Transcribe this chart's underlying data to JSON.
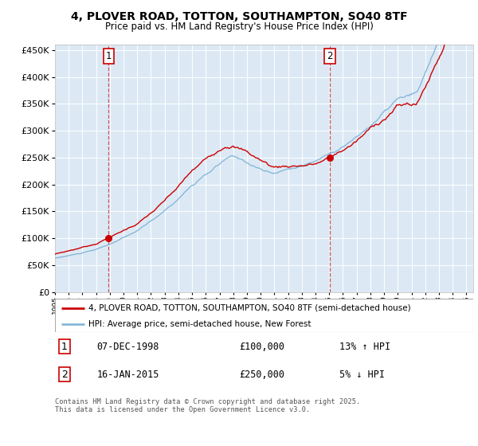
{
  "title": "4, PLOVER ROAD, TOTTON, SOUTHAMPTON, SO40 8TF",
  "subtitle": "Price paid vs. HM Land Registry's House Price Index (HPI)",
  "bg_color": "#dce9f5",
  "red_line_color": "#cc0000",
  "blue_line_color": "#88b8d8",
  "sale1_date_label": "07-DEC-1998",
  "sale1_price": 100000,
  "sale1_pct": "13% ↑ HPI",
  "sale2_date_label": "16-JAN-2015",
  "sale2_price": 250000,
  "sale2_pct": "5% ↓ HPI",
  "legend_line1": "4, PLOVER ROAD, TOTTON, SOUTHAMPTON, SO40 8TF (semi-detached house)",
  "legend_line2": "HPI: Average price, semi-detached house, New Forest",
  "footer": "Contains HM Land Registry data © Crown copyright and database right 2025.\nThis data is licensed under the Open Government Licence v3.0.",
  "ylim": [
    0,
    460000
  ],
  "yticks": [
    0,
    50000,
    100000,
    150000,
    200000,
    250000,
    300000,
    350000,
    400000,
    450000
  ],
  "vline1_year": 1998.92,
  "vline2_year": 2015.04
}
